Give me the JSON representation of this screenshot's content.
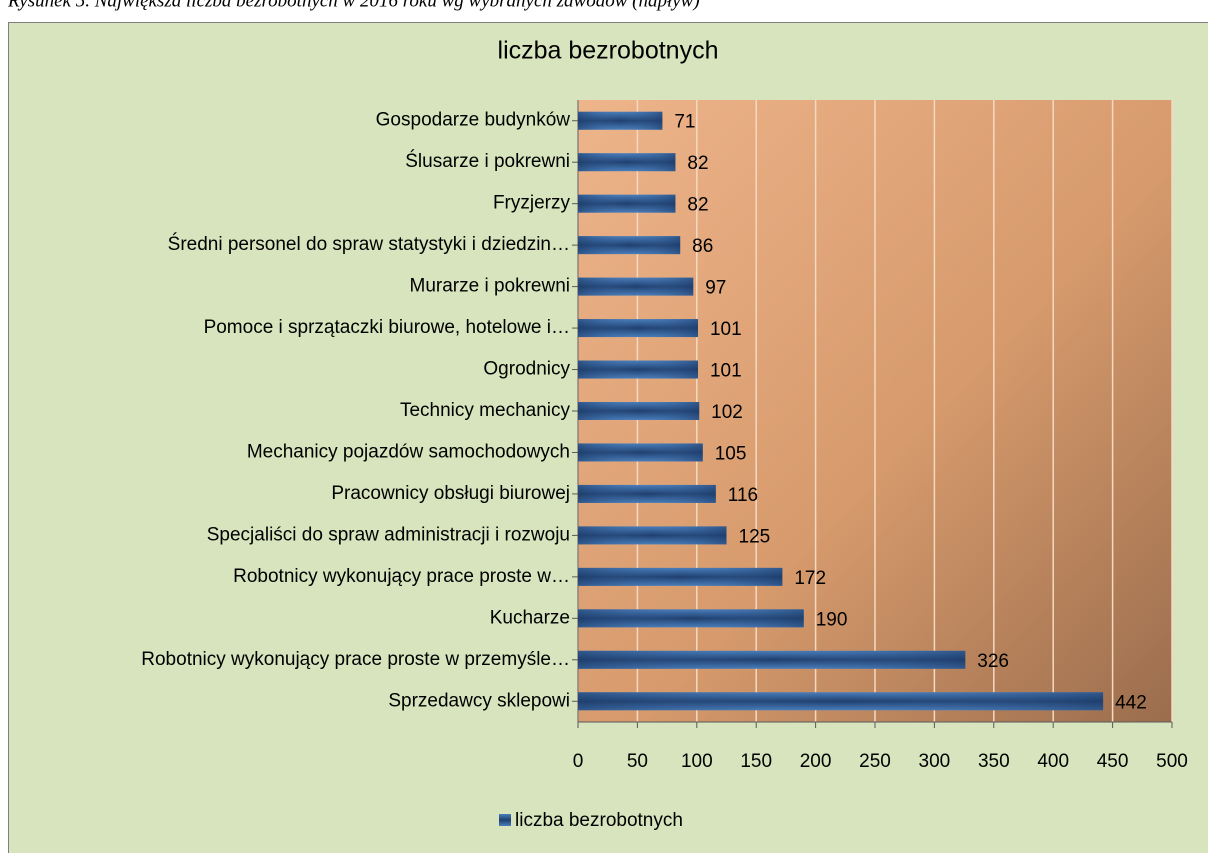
{
  "chart_data": {
    "type": "barh",
    "caption": "Rysunek 5. Największa liczba bezrobotnych w 2016 roku wg wybranych zawodów (napływ)",
    "title": "liczba bezrobotnych",
    "categories": [
      "Gospodarze budynków",
      "Ślusarze i pokrewni",
      "Fryzjerzy",
      "Średni personel do spraw statystyki i dziedzin…",
      "Murarze i pokrewni",
      "Pomoce i sprzątaczki biurowe, hotelowe i…",
      "Ogrodnicy",
      "Technicy mechanicy",
      "Mechanicy pojazdów samochodowych",
      "Pracownicy obsługi biurowej",
      "Specjaliści do spraw administracji i rozwoju",
      "Robotnicy wykonujący prace proste w…",
      "Kucharze",
      "Robotnicy wykonujący prace proste w przemyśle…",
      "Sprzedawcy sklepowi"
    ],
    "series": [
      {
        "name": "liczba bezrobotnych",
        "color": "#4a7ebb",
        "values": [
          71,
          82,
          82,
          86,
          97,
          101,
          101,
          102,
          105,
          116,
          125,
          172,
          190,
          326,
          442
        ]
      }
    ],
    "xlim": [
      0,
      500
    ],
    "xticks": [
      0,
      50,
      100,
      150,
      200,
      250,
      300,
      350,
      400,
      450,
      500
    ],
    "grid": true,
    "legend": "bottom"
  }
}
